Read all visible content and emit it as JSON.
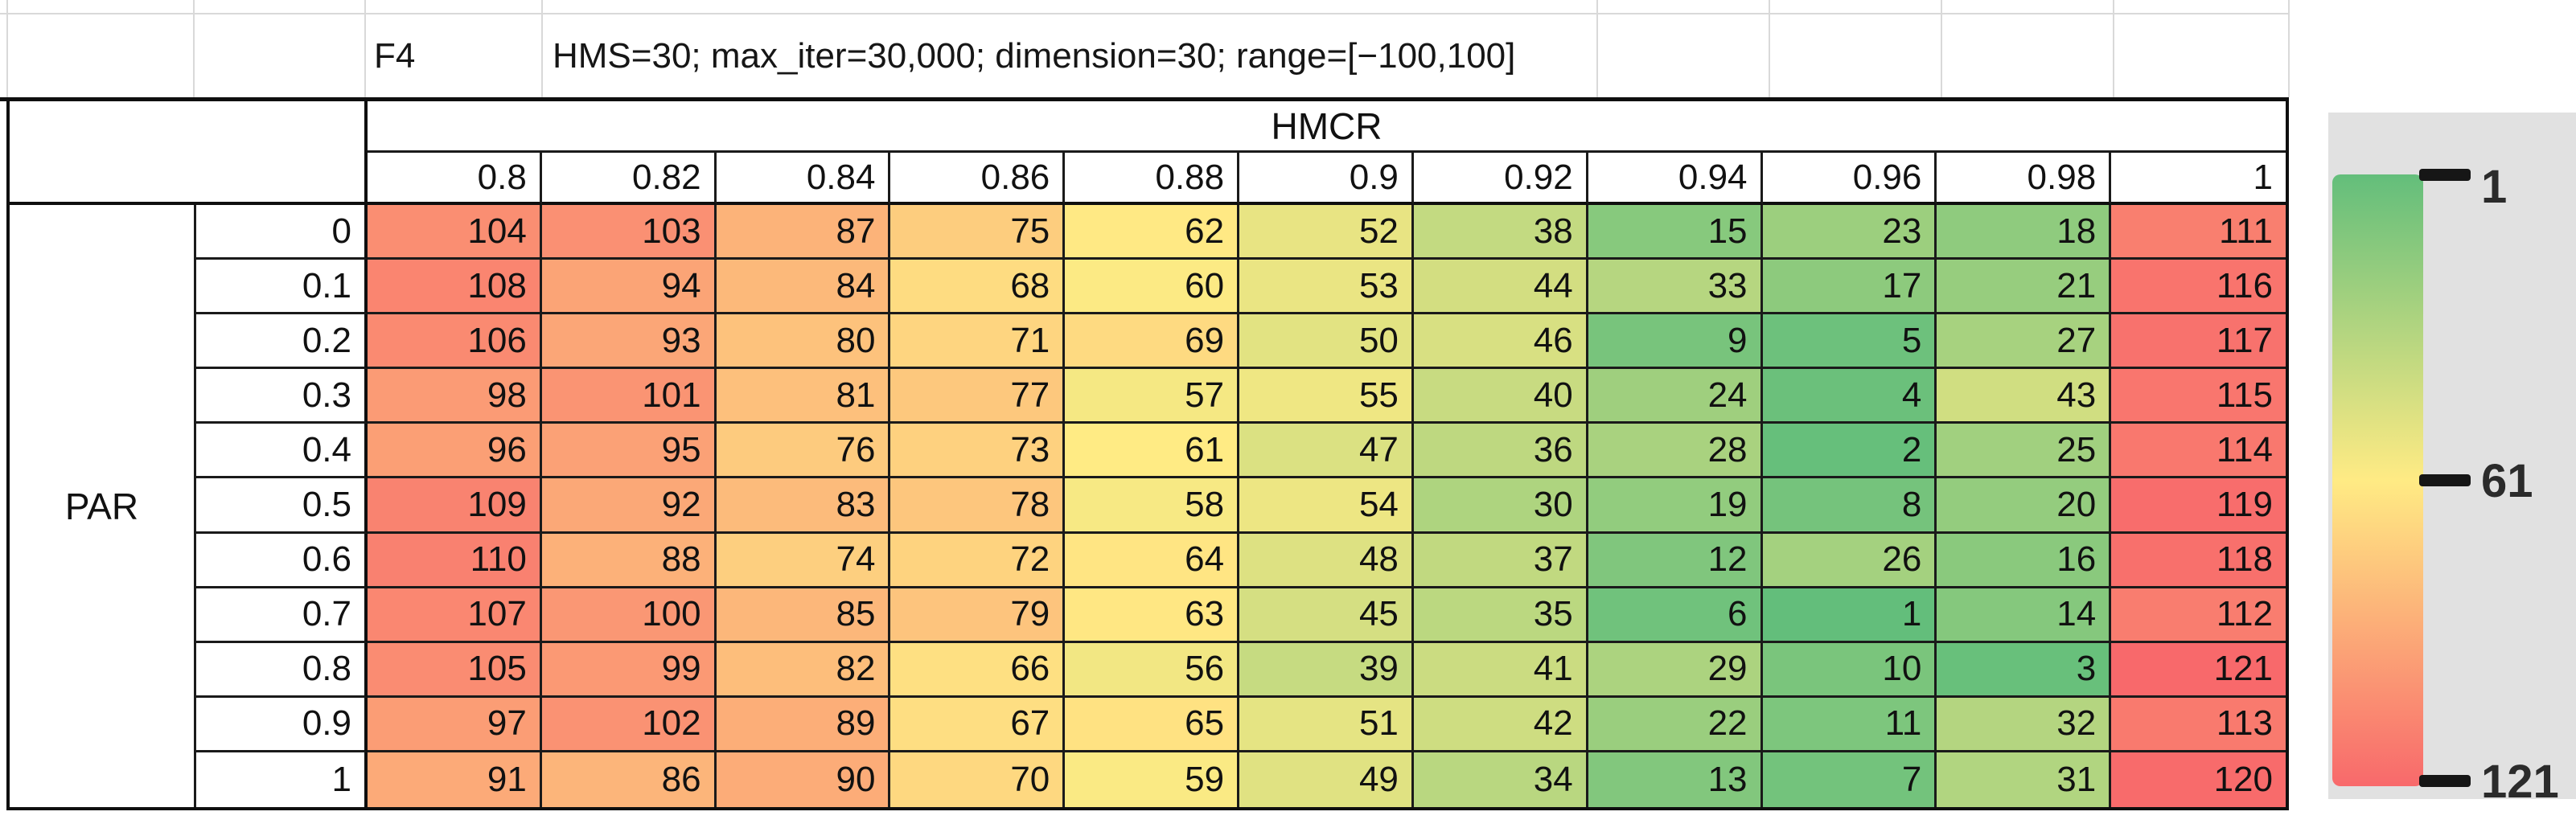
{
  "header": {
    "function_id": "F4",
    "parameters": "HMS=30; max_iter=30,000; dimension=30; range=[−100,100]"
  },
  "table": {
    "col_axis_label": "HMCR",
    "row_axis_label": "PAR"
  },
  "legend": {
    "ticks": [
      "1",
      "61",
      "121"
    ]
  },
  "colors": {
    "scale_min_green": "#63BE7B",
    "scale_mid_yellow": "#FFEB84",
    "scale_max_red": "#F8696B",
    "legend_panel_bg": "#E1E1E1",
    "cell_border": "#1A1A1A",
    "faint_gridline": "#D9D9D9"
  },
  "chart_data": {
    "type": "heatmap",
    "title": "F4",
    "subtitle": "HMS=30; max_iter=30,000; dimension=30; range=[−100,100]",
    "xlabel": "HMCR",
    "ylabel": "PAR",
    "x": [
      0.8,
      0.82,
      0.84,
      0.86,
      0.88,
      0.9,
      0.92,
      0.94,
      0.96,
      0.98,
      1
    ],
    "y": [
      0,
      0.1,
      0.2,
      0.3,
      0.4,
      0.5,
      0.6,
      0.7,
      0.8,
      0.9,
      1
    ],
    "values": [
      [
        104,
        103,
        87,
        75,
        62,
        52,
        38,
        15,
        23,
        18,
        111
      ],
      [
        108,
        94,
        84,
        68,
        60,
        53,
        44,
        33,
        17,
        21,
        116
      ],
      [
        106,
        93,
        80,
        71,
        69,
        50,
        46,
        9,
        5,
        27,
        117
      ],
      [
        98,
        101,
        81,
        77,
        57,
        55,
        40,
        24,
        4,
        43,
        115
      ],
      [
        96,
        95,
        76,
        73,
        61,
        47,
        36,
        28,
        2,
        25,
        114
      ],
      [
        109,
        92,
        83,
        78,
        58,
        54,
        30,
        19,
        8,
        20,
        119
      ],
      [
        110,
        88,
        74,
        72,
        64,
        48,
        37,
        12,
        26,
        16,
        118
      ],
      [
        107,
        100,
        85,
        79,
        63,
        45,
        35,
        6,
        1,
        14,
        112
      ],
      [
        105,
        99,
        82,
        66,
        56,
        39,
        41,
        29,
        10,
        3,
        121
      ],
      [
        97,
        102,
        89,
        67,
        65,
        51,
        42,
        22,
        11,
        32,
        113
      ],
      [
        91,
        86,
        90,
        70,
        59,
        49,
        34,
        13,
        7,
        31,
        120
      ]
    ],
    "zlim": [
      1,
      121
    ],
    "legend_ticks": [
      1,
      61,
      121
    ],
    "color_scale": [
      "#63BE7B",
      "#FFEB84",
      "#F8696B"
    ],
    "legend_position": "right",
    "grid": true
  }
}
